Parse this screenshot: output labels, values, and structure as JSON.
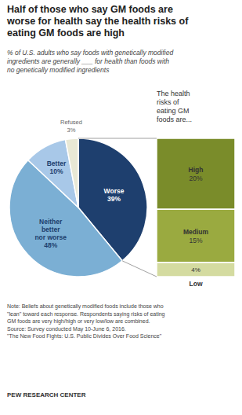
{
  "chart_data": [
    {
      "type": "pie",
      "title": "Half of those who say GM foods are\nworse for health say the health risks of\neating GM foods are high",
      "subtitle": "% of U.S. adults who say foods with genetically modified\ningredients are generally ___ for health than foods with\nno genetically modified ingredients",
      "categories": [
        "Worse",
        "Neither\nbetter\nnor worse",
        "Better",
        "Refused"
      ],
      "values": [
        39,
        48,
        10,
        3
      ],
      "value_labels": [
        "39%",
        "48%",
        "10%",
        "3%"
      ],
      "colors": [
        "#1e3f6e",
        "#7bafd4",
        "#a8c8e8",
        "#e8e8d5"
      ],
      "data_labels": true,
      "tick_labels": false,
      "annotations": [
        "Note: Beliefs about genetically modified foods include those who\n\"lean\" toward each response. Respondents saying risks of eating\nGM foods are very high/high or very low/low are combined.\nSource: Survey conducted May 10-June 6, 2016.\n\"The New Food Fights: U.S. Public Divides Over Food Science\"",
        "PEW RESEARCH CENTER"
      ]
    },
    {
      "type": "bar",
      "stacked": true,
      "title": "The health\nrisks of\neating GM\nfoods are...",
      "categories": [
        "High",
        "Medium",
        "Low"
      ],
      "values": [
        20,
        15,
        4
      ],
      "value_labels": [
        "20%",
        "15%",
        "4%"
      ],
      "colors": [
        "#7a8c2a",
        "#9aaa40",
        "#d4dba0"
      ],
      "data_labels": true,
      "tick_labels": false
    }
  ]
}
